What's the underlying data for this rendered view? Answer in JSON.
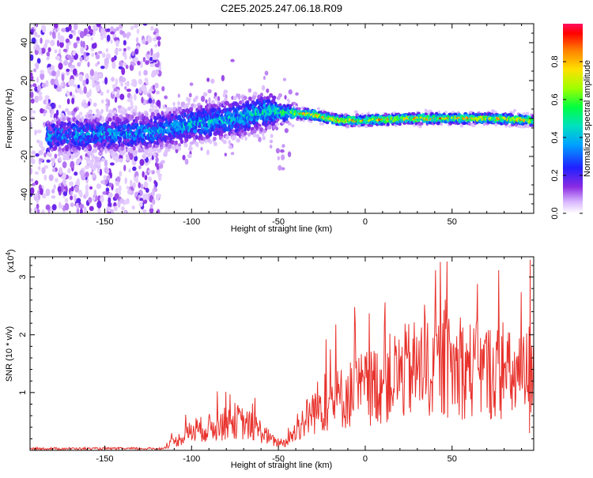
{
  "title": "C2E5.2025.247.06.18.R09",
  "chart_data": [
    {
      "type": "heatmap",
      "title": "C2E5.2025.247.06.18.R09",
      "xlabel": "Height of straight line (km)",
      "ylabel": "Frequency (Hz)",
      "xlim": [
        -193,
        97
      ],
      "ylim": [
        -50,
        50
      ],
      "x_ticks": [
        -150,
        -100,
        -50,
        0,
        50
      ],
      "y_ticks": [
        -40,
        -20,
        0,
        20,
        40
      ],
      "colorbar": {
        "label": "Normalized spectral amplitude",
        "ticks": [
          "0.0",
          "0.2",
          "0.4",
          "0.6",
          "0.8"
        ],
        "range": [
          0,
          1
        ]
      },
      "ridge": [
        {
          "x": -175,
          "f": -9
        },
        {
          "x": -150,
          "f": -8
        },
        {
          "x": -125,
          "f": -7
        },
        {
          "x": -100,
          "f": -3
        },
        {
          "x": -75,
          "f": 0
        },
        {
          "x": -55,
          "f": 4
        },
        {
          "x": -45,
          "f": 3
        },
        {
          "x": -30,
          "f": 2
        },
        {
          "x": -15,
          "f": -1
        },
        {
          "x": 0,
          "f": -1
        },
        {
          "x": 25,
          "f": 0
        },
        {
          "x": 50,
          "f": 0
        },
        {
          "x": 75,
          "f": 0
        },
        {
          "x": 95,
          "f": -1
        }
      ]
    },
    {
      "type": "line",
      "xlabel": "Height of straight line (km)",
      "ylabel": "SNR (10 * v/v)",
      "y_multiplier": "(x10",
      "y_multiplier_exp": "4",
      "y_multiplier_close": ")",
      "xlim": [
        -193,
        97
      ],
      "ylim": [
        0,
        3.35
      ],
      "x_ticks": [
        -150,
        -100,
        -50,
        0,
        50
      ],
      "y_ticks": [
        1,
        2,
        3
      ],
      "color": "#e8322c",
      "envelope": [
        {
          "x": -193,
          "y": 0.02
        },
        {
          "x": -130,
          "y": 0.03
        },
        {
          "x": -118,
          "y": 0.05
        },
        {
          "x": -110,
          "y": 0.15
        },
        {
          "x": -100,
          "y": 0.35
        },
        {
          "x": -85,
          "y": 0.45
        },
        {
          "x": -75,
          "y": 0.55
        },
        {
          "x": -62,
          "y": 0.4
        },
        {
          "x": -52,
          "y": 0.15
        },
        {
          "x": -45,
          "y": 0.15
        },
        {
          "x": -38,
          "y": 0.45
        },
        {
          "x": -28,
          "y": 0.8
        },
        {
          "x": -15,
          "y": 0.95
        },
        {
          "x": -5,
          "y": 1.1
        },
        {
          "x": 5,
          "y": 1.2
        },
        {
          "x": 15,
          "y": 1.35
        },
        {
          "x": 28,
          "y": 1.5
        },
        {
          "x": 45,
          "y": 1.55
        },
        {
          "x": 60,
          "y": 1.5
        },
        {
          "x": 75,
          "y": 1.45
        },
        {
          "x": 90,
          "y": 1.3
        },
        {
          "x": 97,
          "y": 1.6
        }
      ],
      "peak": {
        "x": 95,
        "y": 3.3
      }
    }
  ]
}
